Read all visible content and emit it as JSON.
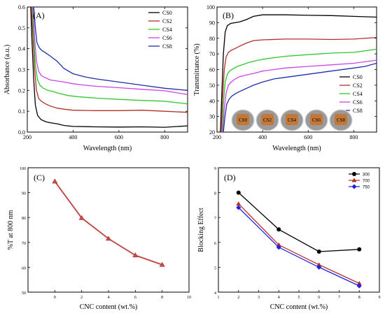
{
  "chart_data": [
    {
      "id": "A",
      "type": "line",
      "panel_label": "(A)",
      "xlabel": "Wavelength (nm)",
      "ylabel": "Absorbance (a.u.)",
      "xlim": [
        200,
        900
      ],
      "ylim": [
        0,
        0.6
      ],
      "xticks": [
        200,
        400,
        600,
        800
      ],
      "yticks": [
        0,
        0.1,
        0.2,
        0.3,
        0.4,
        0.5,
        0.6
      ],
      "ytick_labels": [
        "0.0",
        "0.1",
        "0.2",
        "0.3",
        "0.4",
        "0.5",
        "0.6"
      ],
      "legend_position": "top-right",
      "series": [
        {
          "name": "CS0",
          "color": "#000000",
          "x": [
            215,
            220,
            228,
            235,
            245,
            260,
            280,
            300,
            330,
            360,
            400,
            500,
            600,
            700,
            800,
            900
          ],
          "y": [
            0.6,
            0.45,
            0.25,
            0.13,
            0.08,
            0.06,
            0.05,
            0.045,
            0.04,
            0.032,
            0.027,
            0.025,
            0.024,
            0.025,
            0.023,
            0.03
          ]
        },
        {
          "name": "CS2",
          "color": "#b03028",
          "x": [
            218,
            225,
            232,
            240,
            250,
            265,
            280,
            300,
            330,
            360,
            400,
            500,
            600,
            700,
            800,
            900
          ],
          "y": [
            0.6,
            0.45,
            0.3,
            0.2,
            0.16,
            0.145,
            0.135,
            0.125,
            0.115,
            0.11,
            0.105,
            0.103,
            0.103,
            0.105,
            0.1,
            0.095
          ]
        },
        {
          "name": "CS4",
          "color": "#2ec82e",
          "x": [
            222,
            228,
            235,
            245,
            255,
            270,
            290,
            310,
            340,
            380,
            420,
            500,
            600,
            700,
            800,
            900
          ],
          "y": [
            0.6,
            0.45,
            0.32,
            0.25,
            0.225,
            0.21,
            0.2,
            0.195,
            0.185,
            0.175,
            0.17,
            0.163,
            0.157,
            0.152,
            0.148,
            0.135
          ]
        },
        {
          "name": "CS6",
          "color": "#cc44e6",
          "x": [
            225,
            232,
            240,
            250,
            262,
            280,
            300,
            330,
            360,
            400,
            450,
            500,
            600,
            700,
            800,
            900
          ],
          "y": [
            0.6,
            0.45,
            0.34,
            0.29,
            0.27,
            0.26,
            0.25,
            0.245,
            0.24,
            0.232,
            0.225,
            0.22,
            0.213,
            0.205,
            0.198,
            0.18
          ]
        },
        {
          "name": "CS8",
          "color": "#1f2fa8",
          "x": [
            228,
            235,
            242,
            252,
            265,
            280,
            300,
            330,
            360,
            400,
            450,
            500,
            600,
            700,
            800,
            850,
            900
          ],
          "y": [
            0.6,
            0.5,
            0.43,
            0.405,
            0.39,
            0.38,
            0.365,
            0.34,
            0.305,
            0.28,
            0.265,
            0.255,
            0.24,
            0.225,
            0.21,
            0.205,
            0.2
          ]
        }
      ]
    },
    {
      "id": "B",
      "type": "line",
      "panel_label": "(B)",
      "xlabel": "Wavelength (nm)",
      "ylabel": "Transmittance (%)",
      "xlim": [
        200,
        900
      ],
      "ylim": [
        20,
        100
      ],
      "xticks": [
        200,
        400,
        600,
        800
      ],
      "yticks": [
        20,
        30,
        40,
        50,
        60,
        70,
        80,
        90,
        100
      ],
      "legend_position": "right",
      "samples": [
        "CS0",
        "CS2",
        "CS4",
        "CS6",
        "CS8"
      ],
      "series": [
        {
          "name": "CS0",
          "color": "#000000",
          "x": [
            215,
            220,
            228,
            236,
            245,
            260,
            280,
            300,
            330,
            360,
            400,
            500,
            600,
            700,
            800,
            900
          ],
          "y": [
            20,
            40,
            70,
            84,
            88,
            89.5,
            90,
            90.5,
            92,
            94,
            95,
            95,
            94.7,
            94.5,
            94,
            93.5
          ]
        },
        {
          "name": "CS2",
          "color": "#b03028",
          "x": [
            218,
            224,
            232,
            240,
            250,
            265,
            280,
            300,
            330,
            360,
            400,
            500,
            600,
            700,
            800,
            900
          ],
          "y": [
            20,
            40,
            60,
            68,
            71,
            72.5,
            73.5,
            75,
            77,
            78.5,
            79,
            79.5,
            79.5,
            79.2,
            79.5,
            80.5
          ]
        },
        {
          "name": "CS4",
          "color": "#2ec82e",
          "x": [
            222,
            228,
            236,
            245,
            255,
            270,
            290,
            310,
            340,
            380,
            420,
            500,
            600,
            700,
            800,
            900
          ],
          "y": [
            20,
            38,
            52,
            57,
            59,
            60.5,
            62,
            63,
            64.5,
            66,
            67,
            68.5,
            69.5,
            70.5,
            71,
            73
          ]
        },
        {
          "name": "CS6",
          "color": "#cc44e6",
          "x": [
            225,
            232,
            240,
            250,
            262,
            280,
            300,
            330,
            360,
            400,
            450,
            500,
            600,
            700,
            800,
            900
          ],
          "y": [
            20,
            35,
            45,
            50,
            52,
            54,
            55.5,
            56.5,
            57.5,
            59,
            60,
            61,
            62,
            63,
            64,
            66
          ]
        },
        {
          "name": "CS8",
          "color": "#1f2fa8",
          "x": [
            228,
            235,
            243,
            253,
            265,
            280,
            300,
            330,
            360,
            400,
            450,
            500,
            600,
            700,
            800,
            850,
            900
          ],
          "y": [
            20,
            30,
            38,
            41,
            43,
            44.5,
            46,
            48,
            50,
            52,
            54,
            55,
            57,
            59,
            61,
            62,
            64
          ]
        }
      ]
    },
    {
      "id": "C",
      "type": "line",
      "panel_label": "(C)",
      "xlabel": "CNC content (wt.%)",
      "ylabel": "%T at 800 nm",
      "xlim": [
        -2,
        10
      ],
      "ylim": [
        50,
        100
      ],
      "xticks": [
        0,
        2,
        4,
        6,
        8,
        10
      ],
      "yticks": [
        50,
        60,
        70,
        80,
        90,
        100
      ],
      "color": "#b03028",
      "marker_color": "#c0504d",
      "x": [
        0,
        2,
        4,
        6,
        8
      ],
      "y": [
        94.5,
        79.8,
        71.5,
        64.8,
        61
      ]
    },
    {
      "id": "D",
      "type": "line",
      "panel_label": "(D)",
      "xlabel": "CNC content (wt.%)",
      "ylabel": "Blocking Effect",
      "xlim": [
        1,
        9
      ],
      "ylim": [
        4,
        9
      ],
      "xticks": [
        1,
        2,
        3,
        4,
        5,
        6,
        7,
        8,
        9
      ],
      "yticks": [
        4,
        5,
        6,
        7,
        8,
        9
      ],
      "legend_position": "top-right",
      "x": [
        2,
        4,
        6,
        8
      ],
      "series": [
        {
          "name": "300",
          "color": "#000000",
          "marker": "circle",
          "y": [
            8,
            6.52,
            5.63,
            5.72
          ]
        },
        {
          "name": "700",
          "color": "#b03028",
          "marker": "triangle",
          "y": [
            7.55,
            5.9,
            5.1,
            4.35
          ]
        },
        {
          "name": "750",
          "color": "#2020e0",
          "marker": "diamond",
          "y": [
            7.4,
            5.8,
            5.0,
            4.25
          ]
        }
      ]
    }
  ]
}
